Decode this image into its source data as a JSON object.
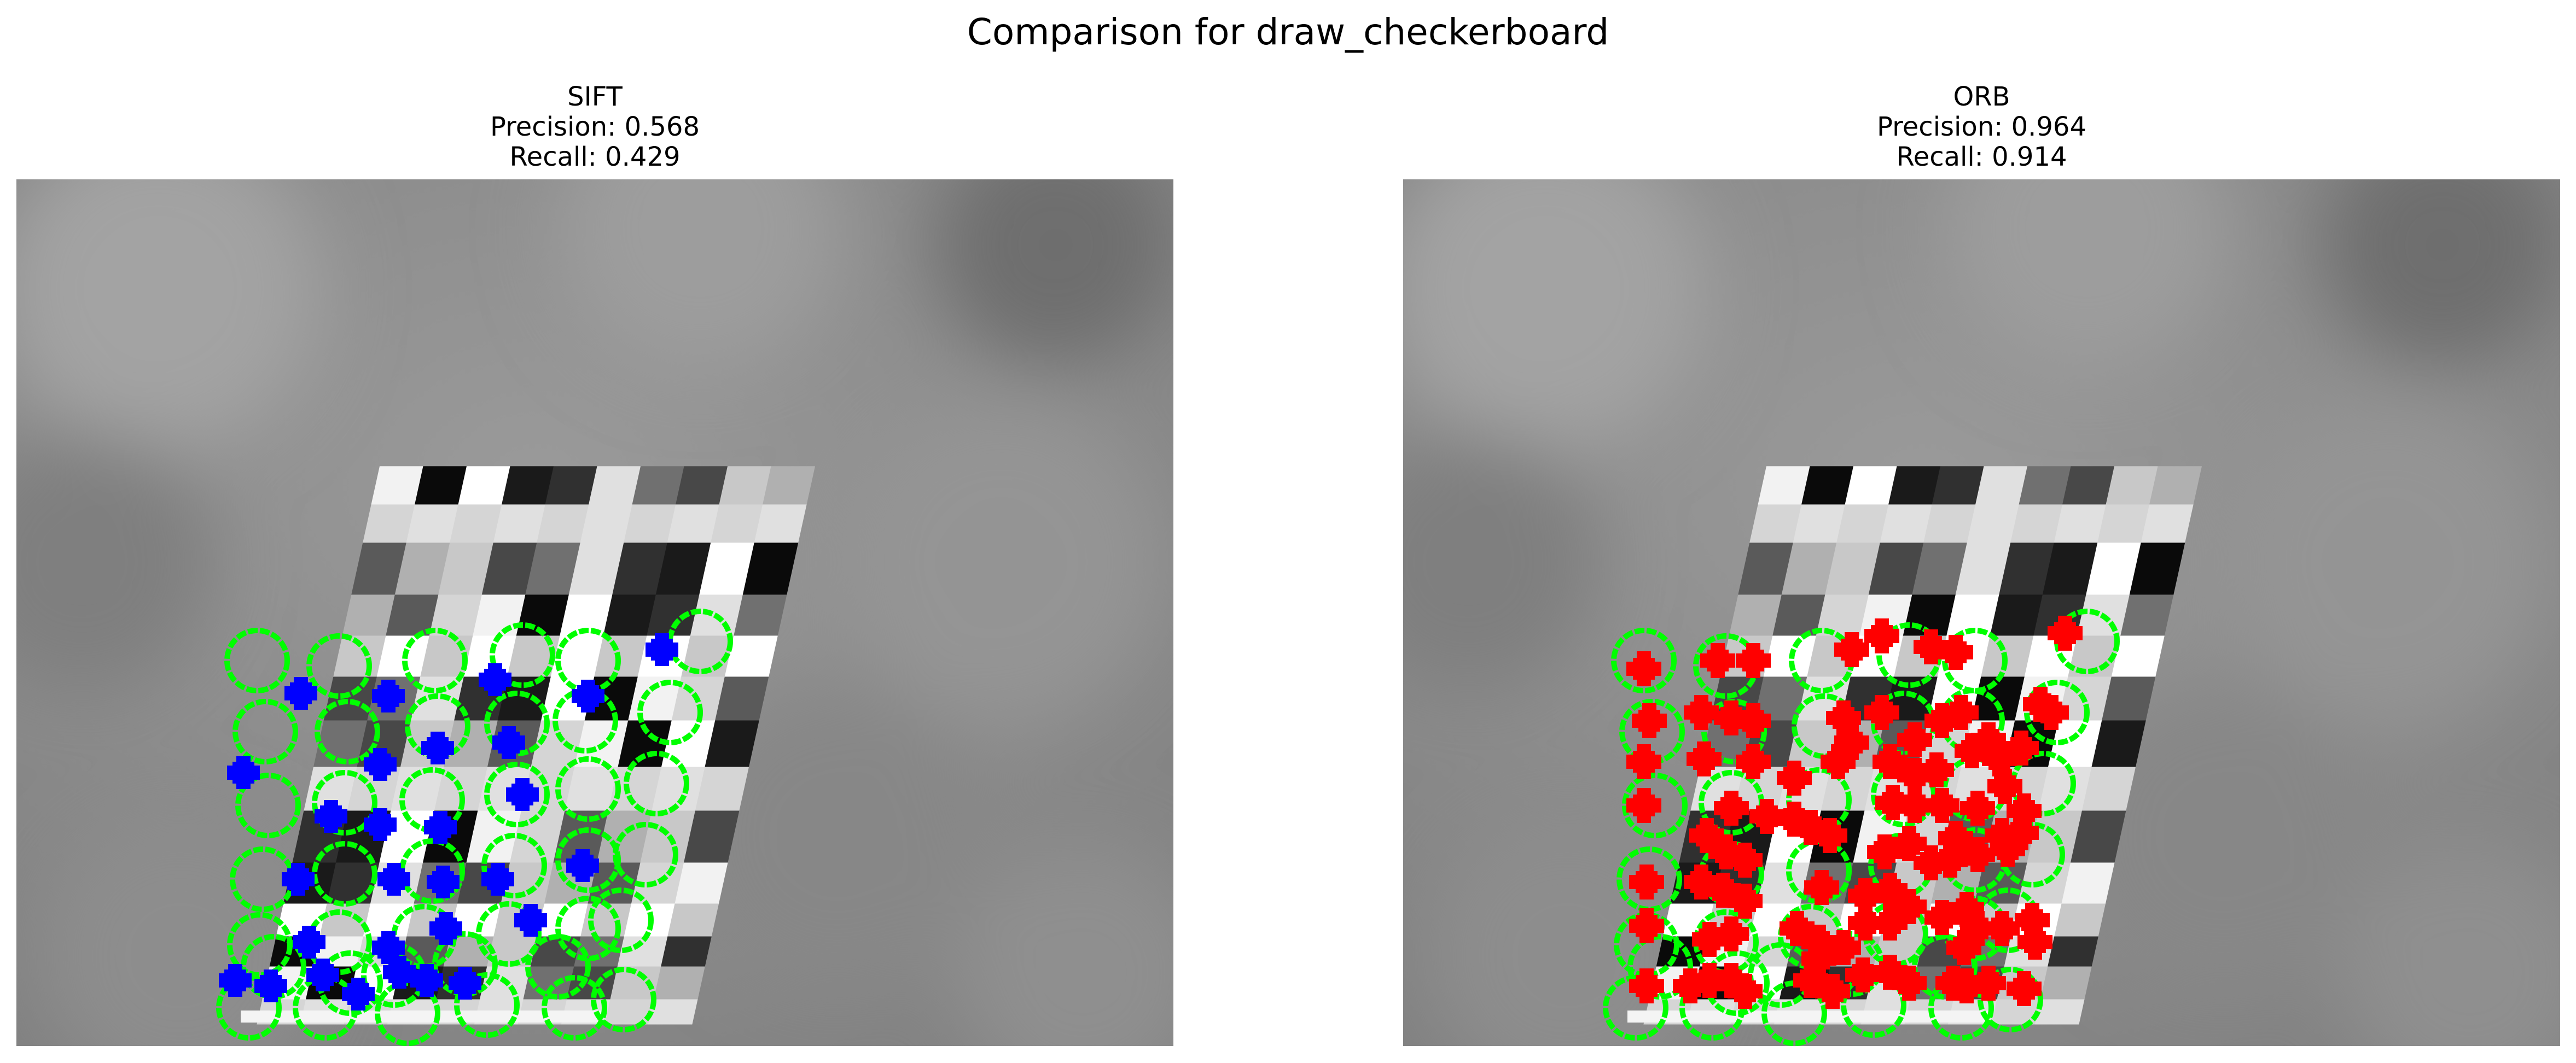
{
  "figure": {
    "title": "Comparison for draw_checkerboard"
  },
  "panels": [
    {
      "detector": "SIFT",
      "precision_text": "Precision: 0.568",
      "recall_text": "Recall: 0.429",
      "precision": 0.568,
      "recall": 0.429,
      "keypoint_color": "#0000ff",
      "marker_icon": "plus-marker-icon"
    },
    {
      "detector": "ORB",
      "precision_text": "Precision: 0.964",
      "recall_text": "Recall: 0.914",
      "precision": 0.964,
      "recall": 0.914,
      "keypoint_color": "#ff0000",
      "marker_icon": "plus-marker-icon"
    }
  ],
  "ground_truth_color": "#00ff00",
  "ground_truth_icon": "circle-marker-icon"
}
